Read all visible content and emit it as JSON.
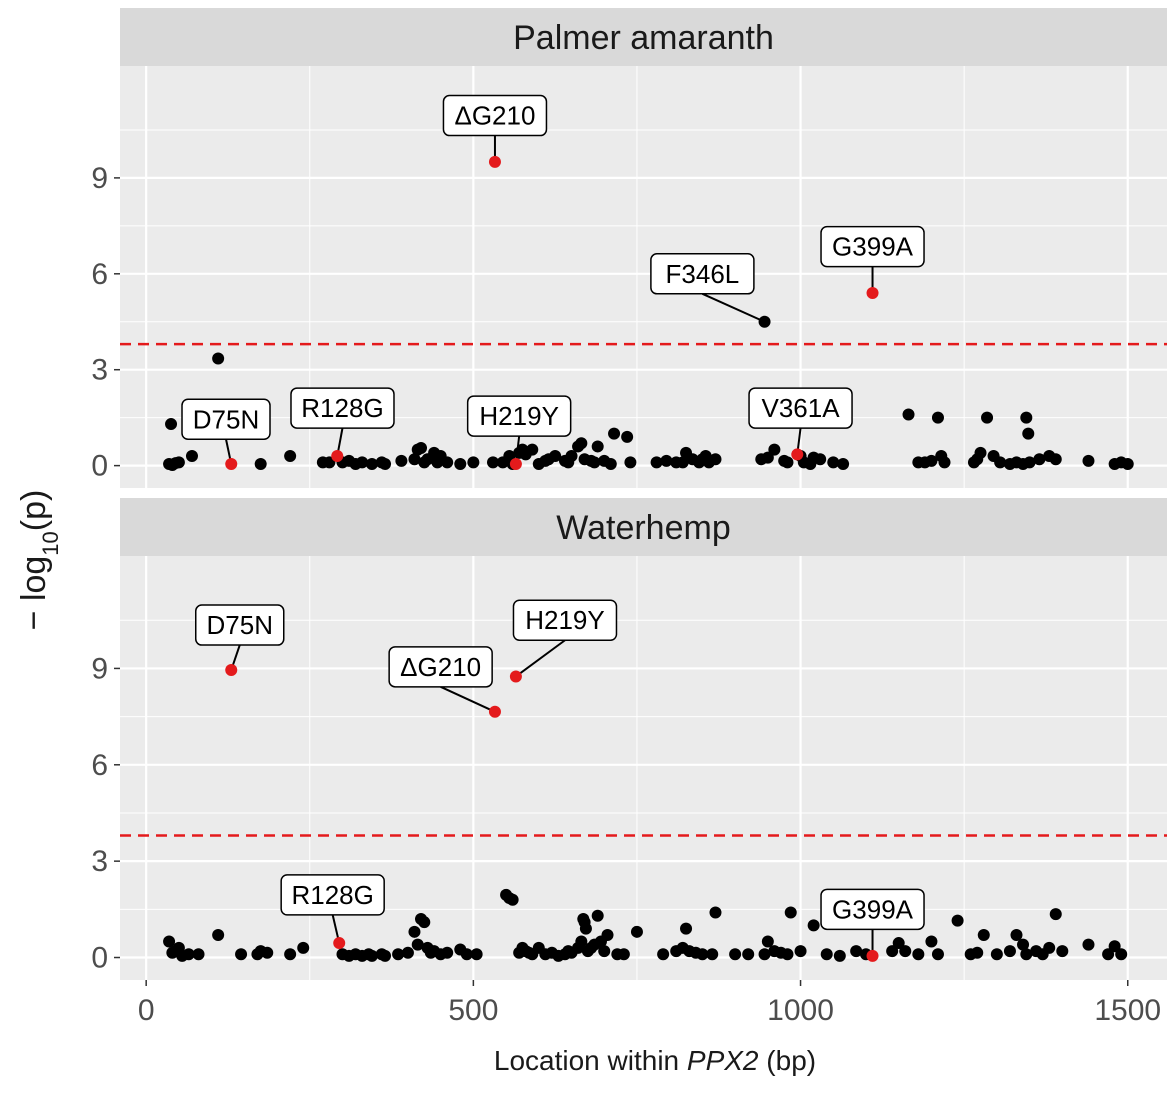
{
  "chart_data": {
    "type": "scatter",
    "ylabel_prefix": "− log",
    "ylabel_sub": "10",
    "ylabel_suffix": "(p)",
    "xlabel_prefix": "Location within ",
    "xlabel_gene": "PPX2",
    "xlabel_suffix": " (bp)",
    "xlim": [
      -40,
      1560
    ],
    "ylim": [
      -0.7,
      12.5
    ],
    "x_ticks": [
      0,
      500,
      1000,
      1500
    ],
    "y_ticks": [
      0,
      3,
      6,
      9
    ],
    "threshold": 3.8,
    "grid": true,
    "colors": {
      "panel_bg": "#ebebeb",
      "strip_bg": "#d9d9d9",
      "grid": "#ffffff",
      "point": "#000000",
      "highlight": "#e41a1c",
      "threshold": "#e41a1c"
    },
    "facets": [
      {
        "name": "Palmer amaranth",
        "points": [
          [
            35,
            0.05
          ],
          [
            40,
            0.02
          ],
          [
            45,
            0.08
          ],
          [
            50,
            0.1
          ],
          [
            38,
            1.3
          ],
          [
            70,
            0.3
          ],
          [
            110,
            3.35
          ],
          [
            175,
            0.05
          ],
          [
            220,
            0.3
          ],
          [
            270,
            0.1
          ],
          [
            280,
            0.1
          ],
          [
            300,
            0.1
          ],
          [
            310,
            0.15
          ],
          [
            320,
            0.05
          ],
          [
            330,
            0.1
          ],
          [
            345,
            0.05
          ],
          [
            360,
            0.1
          ],
          [
            365,
            0.05
          ],
          [
            390,
            0.15
          ],
          [
            410,
            0.2
          ],
          [
            415,
            0.5
          ],
          [
            420,
            0.55
          ],
          [
            425,
            0.1
          ],
          [
            430,
            0.2
          ],
          [
            440,
            0.4
          ],
          [
            445,
            0.1
          ],
          [
            450,
            0.3
          ],
          [
            460,
            0.1
          ],
          [
            480,
            0.05
          ],
          [
            500,
            0.1
          ],
          [
            530,
            0.1
          ],
          [
            545,
            0.1
          ],
          [
            555,
            0.3
          ],
          [
            560,
            0.05
          ],
          [
            570,
            0.4
          ],
          [
            575,
            0.5
          ],
          [
            580,
            0.35
          ],
          [
            590,
            0.5
          ],
          [
            600,
            0.05
          ],
          [
            610,
            0.15
          ],
          [
            615,
            0.2
          ],
          [
            625,
            0.3
          ],
          [
            640,
            0.15
          ],
          [
            645,
            0.1
          ],
          [
            650,
            0.3
          ],
          [
            660,
            0.6
          ],
          [
            665,
            0.7
          ],
          [
            670,
            0.2
          ],
          [
            680,
            0.15
          ],
          [
            685,
            0.1
          ],
          [
            690,
            0.6
          ],
          [
            700,
            0.15
          ],
          [
            710,
            0.05
          ],
          [
            715,
            1.0
          ],
          [
            735,
            0.9
          ],
          [
            740,
            0.1
          ],
          [
            780,
            0.1
          ],
          [
            795,
            0.15
          ],
          [
            810,
            0.1
          ],
          [
            820,
            0.1
          ],
          [
            825,
            0.4
          ],
          [
            835,
            0.2
          ],
          [
            845,
            0.1
          ],
          [
            850,
            0.2
          ],
          [
            855,
            0.3
          ],
          [
            860,
            0.1
          ],
          [
            870,
            0.2
          ],
          [
            940,
            0.2
          ],
          [
            950,
            0.25
          ],
          [
            960,
            0.5
          ],
          [
            975,
            0.15
          ],
          [
            980,
            0.1
          ],
          [
            1000,
            0.3
          ],
          [
            1005,
            0.1
          ],
          [
            1015,
            0.05
          ],
          [
            1020,
            0.25
          ],
          [
            1030,
            0.2
          ],
          [
            1050,
            0.1
          ],
          [
            1065,
            0.05
          ],
          [
            1165,
            1.6
          ],
          [
            1180,
            0.1
          ],
          [
            1190,
            0.1
          ],
          [
            1200,
            0.15
          ],
          [
            1210,
            1.5
          ],
          [
            1215,
            0.3
          ],
          [
            1220,
            0.1
          ],
          [
            1265,
            0.1
          ],
          [
            1270,
            0.2
          ],
          [
            1275,
            0.4
          ],
          [
            1285,
            1.5
          ],
          [
            1295,
            0.3
          ],
          [
            1305,
            0.1
          ],
          [
            1320,
            0.05
          ],
          [
            1330,
            0.1
          ],
          [
            1340,
            0.05
          ],
          [
            1345,
            1.5
          ],
          [
            1348,
            1.0
          ],
          [
            1350,
            0.1
          ],
          [
            1365,
            0.2
          ],
          [
            1380,
            0.3
          ],
          [
            1390,
            0.2
          ],
          [
            1440,
            0.15
          ],
          [
            1480,
            0.05
          ],
          [
            1490,
            0.1
          ],
          [
            1500,
            0.05
          ]
        ],
        "highlights": [
          [
            130,
            0.05
          ],
          [
            292,
            0.3
          ],
          [
            565,
            0.05
          ],
          [
            533,
            9.5
          ],
          [
            995,
            0.35
          ],
          [
            1110,
            5.4
          ]
        ],
        "labels": [
          {
            "text": "ΔG210",
            "x": 533,
            "y": 9.5,
            "lx": 533,
            "ly": 10.95
          },
          {
            "text": "G399A",
            "x": 1110,
            "y": 5.4,
            "lx": 1110,
            "ly": 6.85
          },
          {
            "text": "F346L",
            "x": 945,
            "y": 4.5,
            "lx": 850,
            "ly": 6.0
          },
          {
            "text": "D75N",
            "x": 130,
            "y": 0.05,
            "lx": 122,
            "ly": 1.45
          },
          {
            "text": "R128G",
            "x": 292,
            "y": 0.3,
            "lx": 300,
            "ly": 1.8
          },
          {
            "text": "H219Y",
            "x": 565,
            "y": 0.05,
            "lx": 570,
            "ly": 1.55
          },
          {
            "text": "V361A",
            "x": 995,
            "y": 0.35,
            "lx": 1000,
            "ly": 1.8
          }
        ],
        "black_points": [
          [
            945,
            4.5
          ]
        ]
      },
      {
        "name": "Waterhemp",
        "points": [
          [
            35,
            0.5
          ],
          [
            40,
            0.15
          ],
          [
            45,
            0.2
          ],
          [
            50,
            0.3
          ],
          [
            55,
            0.05
          ],
          [
            65,
            0.1
          ],
          [
            80,
            0.1
          ],
          [
            110,
            0.7
          ],
          [
            145,
            0.1
          ],
          [
            170,
            0.1
          ],
          [
            175,
            0.2
          ],
          [
            185,
            0.15
          ],
          [
            220,
            0.1
          ],
          [
            240,
            0.3
          ],
          [
            300,
            0.1
          ],
          [
            310,
            0.05
          ],
          [
            320,
            0.1
          ],
          [
            330,
            0.05
          ],
          [
            340,
            0.1
          ],
          [
            345,
            0.05
          ],
          [
            360,
            0.1
          ],
          [
            365,
            0.05
          ],
          [
            385,
            0.1
          ],
          [
            400,
            0.15
          ],
          [
            410,
            0.8
          ],
          [
            415,
            0.4
          ],
          [
            420,
            1.2
          ],
          [
            425,
            1.1
          ],
          [
            430,
            0.3
          ],
          [
            435,
            0.15
          ],
          [
            440,
            0.2
          ],
          [
            450,
            0.1
          ],
          [
            460,
            0.15
          ],
          [
            480,
            0.25
          ],
          [
            490,
            0.1
          ],
          [
            505,
            0.1
          ],
          [
            550,
            1.95
          ],
          [
            555,
            1.85
          ],
          [
            560,
            1.8
          ],
          [
            570,
            0.15
          ],
          [
            575,
            0.3
          ],
          [
            580,
            0.2
          ],
          [
            585,
            0.15
          ],
          [
            590,
            0.1
          ],
          [
            600,
            0.3
          ],
          [
            610,
            0.1
          ],
          [
            620,
            0.15
          ],
          [
            630,
            0.05
          ],
          [
            640,
            0.1
          ],
          [
            645,
            0.2
          ],
          [
            650,
            0.15
          ],
          [
            660,
            0.3
          ],
          [
            665,
            0.5
          ],
          [
            668,
            1.2
          ],
          [
            670,
            1.1
          ],
          [
            672,
            0.9
          ],
          [
            675,
            0.2
          ],
          [
            680,
            0.3
          ],
          [
            685,
            0.4
          ],
          [
            690,
            1.3
          ],
          [
            695,
            0.5
          ],
          [
            700,
            0.2
          ],
          [
            705,
            0.7
          ],
          [
            720,
            0.1
          ],
          [
            730,
            0.1
          ],
          [
            750,
            0.8
          ],
          [
            790,
            0.1
          ],
          [
            810,
            0.2
          ],
          [
            820,
            0.3
          ],
          [
            825,
            0.9
          ],
          [
            830,
            0.2
          ],
          [
            840,
            0.15
          ],
          [
            850,
            0.1
          ],
          [
            865,
            0.1
          ],
          [
            870,
            1.4
          ],
          [
            900,
            0.1
          ],
          [
            920,
            0.1
          ],
          [
            945,
            0.1
          ],
          [
            950,
            0.5
          ],
          [
            960,
            0.2
          ],
          [
            970,
            0.15
          ],
          [
            980,
            0.1
          ],
          [
            985,
            1.4
          ],
          [
            1000,
            0.2
          ],
          [
            1020,
            1.0
          ],
          [
            1040,
            0.1
          ],
          [
            1060,
            0.05
          ],
          [
            1085,
            0.2
          ],
          [
            1100,
            0.1
          ],
          [
            1140,
            0.2
          ],
          [
            1150,
            0.45
          ],
          [
            1160,
            0.2
          ],
          [
            1180,
            0.1
          ],
          [
            1200,
            0.5
          ],
          [
            1210,
            0.1
          ],
          [
            1240,
            1.15
          ],
          [
            1260,
            0.1
          ],
          [
            1270,
            0.15
          ],
          [
            1280,
            0.7
          ],
          [
            1300,
            0.1
          ],
          [
            1320,
            0.2
          ],
          [
            1330,
            0.7
          ],
          [
            1340,
            0.4
          ],
          [
            1345,
            0.1
          ],
          [
            1360,
            0.2
          ],
          [
            1370,
            0.1
          ],
          [
            1380,
            0.3
          ],
          [
            1390,
            1.35
          ],
          [
            1400,
            0.2
          ],
          [
            1440,
            0.4
          ],
          [
            1470,
            0.1
          ],
          [
            1480,
            0.35
          ],
          [
            1490,
            0.1
          ]
        ],
        "highlights": [
          [
            130,
            8.95
          ],
          [
            295,
            0.45
          ],
          [
            533,
            7.65
          ],
          [
            565,
            8.75
          ],
          [
            1110,
            0.05
          ]
        ],
        "labels": [
          {
            "text": "D75N",
            "x": 130,
            "y": 8.95,
            "lx": 143,
            "ly": 10.35
          },
          {
            "text": "H219Y",
            "x": 565,
            "y": 8.75,
            "lx": 640,
            "ly": 10.5
          },
          {
            "text": "ΔG210",
            "x": 533,
            "y": 7.65,
            "lx": 450,
            "ly": 9.05
          },
          {
            "text": "R128G",
            "x": 295,
            "y": 0.45,
            "lx": 285,
            "ly": 1.95
          },
          {
            "text": "G399A",
            "x": 1110,
            "y": 0.05,
            "lx": 1110,
            "ly": 1.5
          }
        ],
        "black_points": []
      }
    ]
  }
}
